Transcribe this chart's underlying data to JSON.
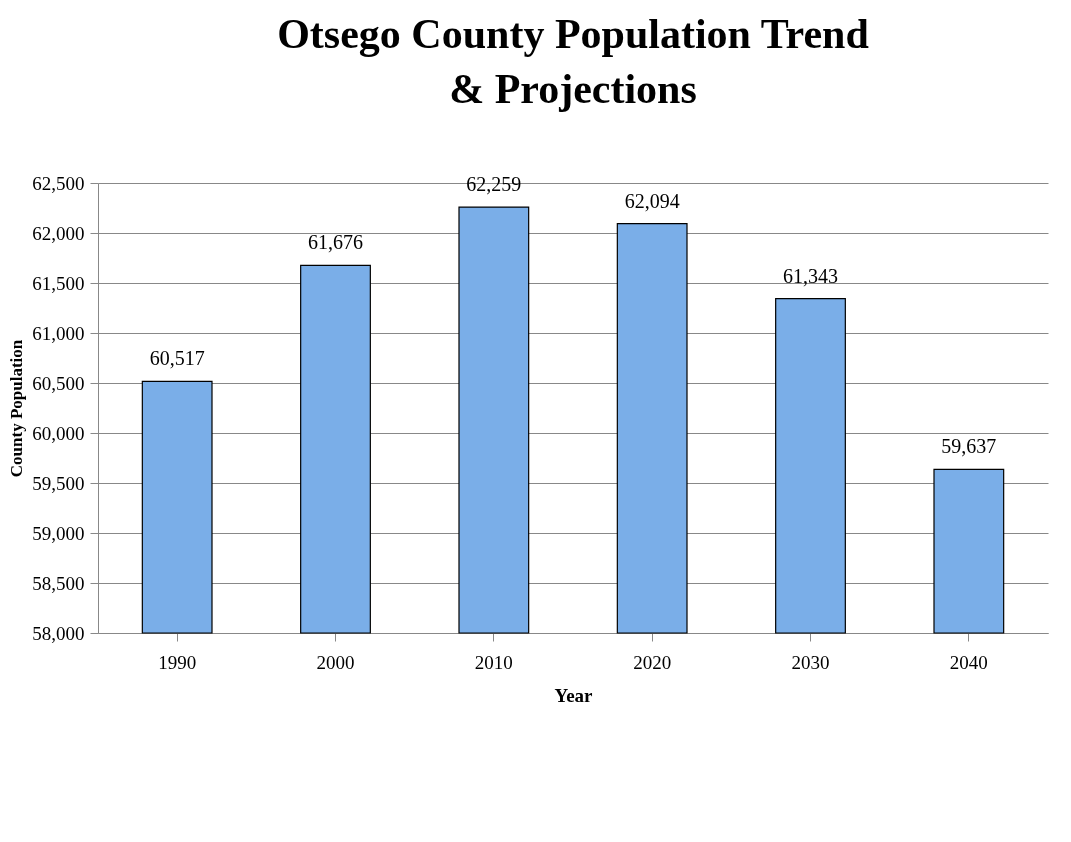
{
  "chart_data": {
    "type": "bar",
    "title": "Otsego County Population Trend & Projections",
    "xlabel": "Year",
    "ylabel": "County Population",
    "categories": [
      "1990",
      "2000",
      "2010",
      "2020",
      "2030",
      "2040"
    ],
    "values": [
      60517,
      61676,
      62259,
      62094,
      61343,
      59637
    ],
    "value_labels": [
      "60,517",
      "61,676",
      "62,259",
      "62,094",
      "61,343",
      "59,637"
    ],
    "color": "#7aaee8",
    "ylim": [
      58000,
      62500
    ],
    "yticks": [
      {
        "value": 58000,
        "label": "58,000"
      },
      {
        "value": 58500,
        "label": "58,500"
      },
      {
        "value": 59000,
        "label": "59,000"
      },
      {
        "value": 59500,
        "label": "59,500"
      },
      {
        "value": 60000,
        "label": "60,000"
      },
      {
        "value": 60500,
        "label": "60,500"
      },
      {
        "value": 61000,
        "label": "61,000"
      },
      {
        "value": 61500,
        "label": "61,500"
      },
      {
        "value": 62000,
        "label": "62,000"
      },
      {
        "value": 62500,
        "label": "62,500"
      }
    ],
    "grid": "y"
  }
}
